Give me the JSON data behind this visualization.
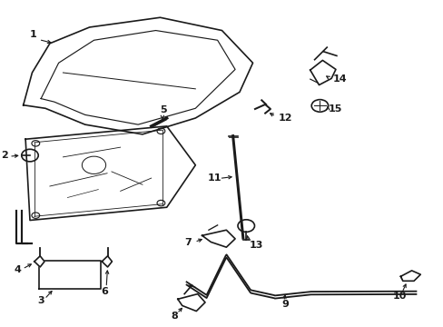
{
  "background_color": "#ffffff",
  "line_color": "#1a1a1a",
  "line_width": 1.2
}
